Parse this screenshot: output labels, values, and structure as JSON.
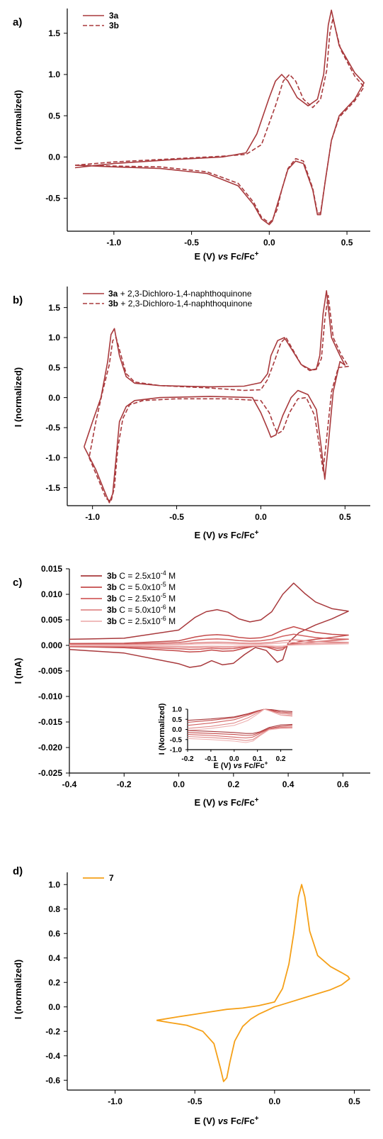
{
  "chart_data": [
    {
      "panel": "a)",
      "type": "line",
      "xlabel": "E (V) vs Fc/Fc+",
      "ylabel": "I (normalized)",
      "xlim": [
        -1.3,
        0.65
      ],
      "ylim": [
        -0.9,
        1.8
      ],
      "xticks": [
        "-1.0",
        "-0.5",
        "0.0",
        "0.5"
      ],
      "xtick_values": [
        -1.0,
        -0.5,
        0.0,
        0.5
      ],
      "yticks": [
        "-0.5",
        "0.0",
        "0.5",
        "1.0",
        "1.5"
      ],
      "ytick_values": [
        -0.5,
        0.0,
        0.5,
        1.0,
        1.5
      ],
      "legend": "top-left",
      "series": [
        {
          "name": "3a",
          "style": "solid",
          "color": "#a8393c",
          "x": [
            -1.25,
            -1.0,
            -0.6,
            -0.3,
            -0.15,
            -0.08,
            0.0,
            0.04,
            0.08,
            0.12,
            0.18,
            0.25,
            0.31,
            0.35,
            0.38,
            0.4,
            0.45,
            0.55,
            0.61,
            0.55,
            0.45,
            0.4,
            0.36,
            0.33,
            0.31,
            0.28,
            0.22,
            0.17,
            0.12,
            0.08,
            0.04,
            0.02,
            0.0,
            -0.05,
            -0.1,
            -0.2,
            -0.4,
            -0.7,
            -1.0,
            -1.25
          ],
          "y": [
            -0.13,
            -0.08,
            -0.03,
            0.0,
            0.05,
            0.28,
            0.72,
            0.92,
            1.0,
            0.92,
            0.72,
            0.62,
            0.7,
            1.0,
            1.6,
            1.78,
            1.35,
            1.02,
            0.9,
            0.7,
            0.5,
            0.2,
            -0.3,
            -0.7,
            -0.7,
            -0.4,
            -0.08,
            -0.05,
            -0.15,
            -0.4,
            -0.65,
            -0.78,
            -0.82,
            -0.75,
            -0.58,
            -0.35,
            -0.2,
            -0.14,
            -0.12,
            -0.1
          ]
        },
        {
          "name": "3b",
          "style": "dashed",
          "color": "#a8393c",
          "x": [
            -1.25,
            -1.0,
            -0.6,
            -0.3,
            -0.15,
            -0.05,
            0.04,
            0.09,
            0.13,
            0.17,
            0.22,
            0.28,
            0.33,
            0.37,
            0.39,
            0.41,
            0.46,
            0.55,
            0.61,
            0.55,
            0.45,
            0.4,
            0.36,
            0.33,
            0.31,
            0.28,
            0.22,
            0.17,
            0.12,
            0.08,
            0.05,
            0.02,
            0.0,
            -0.05,
            -0.1,
            -0.2,
            -0.4,
            -0.7,
            -1.0,
            -1.25
          ],
          "y": [
            -0.1,
            -0.06,
            -0.02,
            0.01,
            0.03,
            0.15,
            0.62,
            0.92,
            1.0,
            0.92,
            0.7,
            0.6,
            0.7,
            1.05,
            1.5,
            1.68,
            1.3,
            0.98,
            0.85,
            0.68,
            0.48,
            0.2,
            -0.3,
            -0.68,
            -0.68,
            -0.38,
            -0.05,
            -0.02,
            -0.14,
            -0.4,
            -0.64,
            -0.76,
            -0.8,
            -0.73,
            -0.55,
            -0.32,
            -0.18,
            -0.12,
            -0.11,
            -0.1
          ]
        }
      ]
    },
    {
      "panel": "b)",
      "type": "line",
      "xlabel": "E (V) vs Fc/Fc+",
      "ylabel": "I (normalized)",
      "xlim": [
        -1.15,
        0.65
      ],
      "ylim": [
        -1.8,
        1.85
      ],
      "xticks": [
        "-1.0",
        "-0.5",
        "0.0",
        "0.5"
      ],
      "xtick_values": [
        -1.0,
        -0.5,
        0.0,
        0.5
      ],
      "yticks": [
        "-1.5",
        "-1.0",
        "-0.5",
        "0.0",
        "0.5",
        "1.0",
        "1.5"
      ],
      "ytick_values": [
        -1.5,
        -1.0,
        -0.5,
        0.0,
        0.5,
        1.0,
        1.5
      ],
      "legend": "top-left",
      "series": [
        {
          "name": "3a + 2,3-Dichloro-1,4-naphthoquinone",
          "style": "solid",
          "color": "#a8393c",
          "x": [
            -1.05,
            -0.98,
            -0.93,
            -0.9,
            -0.88,
            -0.86,
            -0.84,
            -0.8,
            -0.75,
            -0.6,
            -0.3,
            -0.05,
            0.0,
            0.04,
            0.06,
            0.09,
            0.13,
            0.18,
            0.22,
            0.28,
            0.33,
            0.36,
            0.38,
            0.4,
            0.43,
            0.47,
            0.5,
            0.47,
            0.42,
            0.39,
            0.37,
            0.35,
            0.33,
            0.3,
            0.24,
            0.18,
            0.14,
            0.1,
            0.06,
            0.04,
            0.0,
            -0.1,
            -0.3,
            -0.6,
            -0.75,
            -0.8,
            -0.84,
            -0.87,
            -0.89,
            -0.91,
            -0.95,
            -1.0,
            -1.05
          ],
          "y": [
            -0.82,
            -1.2,
            -1.55,
            -1.75,
            -1.6,
            -1.0,
            -0.4,
            -0.15,
            -0.05,
            0.0,
            0.02,
            0.0,
            -0.25,
            -0.52,
            -0.66,
            -0.62,
            -0.3,
            0.0,
            0.12,
            0.05,
            -0.2,
            -0.85,
            -1.36,
            -0.8,
            0.1,
            0.6,
            0.54,
            0.7,
            1.0,
            1.78,
            1.4,
            0.7,
            0.48,
            0.46,
            0.55,
            0.82,
            1.0,
            0.95,
            0.7,
            0.4,
            0.25,
            0.19,
            0.18,
            0.2,
            0.24,
            0.35,
            0.7,
            1.15,
            1.05,
            0.6,
            0.0,
            -0.4,
            -0.82
          ]
        },
        {
          "name": "3b + 2,3-Dichloro-1,4-naphthoquinone",
          "style": "dashed",
          "color": "#a8393c",
          "x": [
            -1.02,
            -0.96,
            -0.92,
            -0.89,
            -0.87,
            -0.85,
            -0.82,
            -0.78,
            -0.7,
            -0.5,
            -0.2,
            0.0,
            0.05,
            0.08,
            0.1,
            0.13,
            0.17,
            0.22,
            0.27,
            0.32,
            0.35,
            0.37,
            0.39,
            0.42,
            0.46,
            0.52,
            0.48,
            0.43,
            0.4,
            0.38,
            0.36,
            0.33,
            0.29,
            0.24,
            0.18,
            0.15,
            0.12,
            0.08,
            0.04,
            0.0,
            -0.1,
            -0.3,
            -0.6,
            -0.75,
            -0.8,
            -0.83,
            -0.86,
            -0.88,
            -0.9,
            -0.94,
            -0.98,
            -1.02
          ],
          "y": [
            -1.0,
            -1.4,
            -1.68,
            -1.73,
            -1.5,
            -0.85,
            -0.35,
            -0.12,
            -0.05,
            -0.02,
            -0.02,
            -0.05,
            -0.25,
            -0.48,
            -0.6,
            -0.55,
            -0.25,
            -0.02,
            0.0,
            -0.3,
            -0.85,
            -1.22,
            -0.7,
            0.1,
            0.5,
            0.52,
            0.7,
            1.0,
            1.7,
            1.3,
            0.65,
            0.47,
            0.45,
            0.55,
            0.85,
            1.0,
            0.92,
            0.6,
            0.3,
            0.13,
            0.12,
            0.16,
            0.2,
            0.26,
            0.4,
            0.7,
            1.0,
            0.95,
            0.55,
            0.1,
            -0.4,
            -1.0
          ]
        }
      ]
    },
    {
      "panel": "c)",
      "type": "line",
      "xlabel": "E (V) vs Fc/Fc+",
      "ylabel": "I (mA)",
      "xlim": [
        -0.4,
        0.7
      ],
      "ylim": [
        -0.025,
        0.015
      ],
      "xticks": [
        "-0.4",
        "-0.2",
        "0.0",
        "0.2",
        "0.4",
        "0.6"
      ],
      "xtick_values": [
        -0.4,
        -0.2,
        0.0,
        0.2,
        0.4,
        0.6
      ],
      "yticks": [
        "-0.025",
        "-0.020",
        "-0.015",
        "-0.010",
        "-0.005",
        "0.000",
        "0.005",
        "0.010",
        "0.015"
      ],
      "ytick_values": [
        -0.025,
        -0.02,
        -0.015,
        -0.01,
        -0.005,
        0.0,
        0.005,
        0.01,
        0.015
      ],
      "legend": "top-left",
      "series": [
        {
          "name": "3b",
          "label_suffix": " C = 2.5x10",
          "exponent": "-4",
          "unit": " M",
          "color": "#a8393c",
          "scale": 1.0
        },
        {
          "name": "3b",
          "label_suffix": " C = 5.0x10",
          "exponent": "-5",
          "unit": " M",
          "color": "#c44b4b",
          "scale": 0.3
        },
        {
          "name": "3b",
          "label_suffix": " C = 2.5x10",
          "exponent": "-5",
          "unit": " M",
          "color": "#d26060",
          "scale": 0.18
        },
        {
          "name": "3b",
          "label_suffix": " C = 5.0x10",
          "exponent": "-6",
          "unit": " M",
          "color": "#e08a8a",
          "scale": 0.09
        },
        {
          "name": "3b",
          "label_suffix": " C = 2.5x10",
          "exponent": "-6",
          "unit": " M",
          "color": "#eeb3b3",
          "scale": 0.05
        }
      ],
      "base_curve": {
        "x": [
          -0.4,
          -0.2,
          0.0,
          0.06,
          0.1,
          0.14,
          0.18,
          0.22,
          0.26,
          0.3,
          0.34,
          0.38,
          0.42,
          0.46,
          0.5,
          0.56,
          0.62,
          0.56,
          0.5,
          0.44,
          0.4,
          0.38,
          0.36,
          0.32,
          0.28,
          0.24,
          0.2,
          0.16,
          0.12,
          0.08,
          0.04,
          0.0,
          -0.2,
          -0.4
        ],
        "y": [
          0.0012,
          0.0014,
          0.003,
          0.0055,
          0.0066,
          0.007,
          0.0065,
          0.0052,
          0.0046,
          0.005,
          0.0066,
          0.01,
          0.0122,
          0.0102,
          0.0085,
          0.0072,
          0.0067,
          0.0052,
          0.004,
          0.0025,
          0.0005,
          -0.0028,
          -0.0033,
          -0.001,
          -0.0004,
          -0.0018,
          -0.0035,
          -0.0038,
          -0.003,
          -0.004,
          -0.0043,
          -0.0036,
          -0.0015,
          -0.0008
        ]
      },
      "inset": {
        "type": "line",
        "xlabel": "E (V) vs Fc/Fc+",
        "ylabel": "I (Normalized)",
        "xlim": [
          -0.2,
          0.25
        ],
        "ylim": [
          -1.0,
          1.0
        ],
        "xticks": [
          "-0.2",
          "-0.1",
          "0.0",
          "0.1",
          "0.2"
        ],
        "xtick_values": [
          -0.2,
          -0.1,
          0.0,
          0.1,
          0.2
        ],
        "yticks": [
          "-1.0",
          "-0.5",
          "0.0",
          "0.5",
          "1.0"
        ],
        "ytick_values": [
          -1.0,
          -0.5,
          0.0,
          0.5,
          1.0
        ],
        "upper_x": [
          -0.2,
          -0.1,
          0.0,
          0.06,
          0.1,
          0.13,
          0.16,
          0.2,
          0.25
        ],
        "lower_x": [
          -0.2,
          -0.1,
          0.0,
          0.05,
          0.08,
          0.11,
          0.15,
          0.2,
          0.25
        ],
        "upper_y": [
          [
            0.45,
            0.52,
            0.62,
            0.78,
            0.92,
            1.0,
            0.98,
            0.92,
            0.88
          ],
          [
            0.35,
            0.45,
            0.58,
            0.75,
            0.9,
            1.0,
            0.95,
            0.86,
            0.82
          ],
          [
            0.2,
            0.32,
            0.48,
            0.7,
            0.88,
            1.0,
            0.92,
            0.8,
            0.75
          ],
          [
            0.05,
            0.15,
            0.32,
            0.58,
            0.82,
            1.0,
            0.9,
            0.72,
            0.68
          ],
          [
            -0.05,
            0.05,
            0.2,
            0.45,
            0.75,
            1.0,
            0.88,
            0.7,
            0.65
          ]
        ],
        "lower_y": [
          [
            -0.05,
            -0.1,
            -0.15,
            -0.2,
            -0.2,
            -0.12,
            0.1,
            0.22,
            0.25
          ],
          [
            -0.15,
            -0.2,
            -0.25,
            -0.3,
            -0.28,
            -0.15,
            0.05,
            0.15,
            0.2
          ],
          [
            -0.25,
            -0.3,
            -0.38,
            -0.42,
            -0.38,
            -0.2,
            0.02,
            0.1,
            0.12
          ],
          [
            -0.35,
            -0.4,
            -0.48,
            -0.55,
            -0.5,
            -0.28,
            0.0,
            0.08,
            0.1
          ],
          [
            -0.45,
            -0.5,
            -0.58,
            -0.65,
            -0.58,
            -0.32,
            -0.02,
            0.05,
            0.06
          ]
        ]
      }
    },
    {
      "panel": "d)",
      "type": "line",
      "xlabel": "E (V) vs Fc/Fc+",
      "ylabel": "I (normalized)",
      "xlim": [
        -1.3,
        0.6
      ],
      "ylim": [
        -0.68,
        1.1
      ],
      "xticks": [
        "-1.0",
        "-0.5",
        "0.0",
        "0.5"
      ],
      "xtick_values": [
        -1.0,
        -0.5,
        0.0,
        0.5
      ],
      "yticks": [
        "-0.6",
        "-0.4",
        "-0.2",
        "0.0",
        "0.2",
        "0.4",
        "0.6",
        "0.8",
        "1.0"
      ],
      "ytick_values": [
        -0.6,
        -0.4,
        -0.2,
        0.0,
        0.2,
        0.4,
        0.6,
        0.8,
        1.0
      ],
      "legend": "top-left",
      "series": [
        {
          "name": "7",
          "style": "solid",
          "color": "#f5a018",
          "x": [
            -0.74,
            -0.6,
            -0.5,
            -0.4,
            -0.3,
            -0.2,
            -0.1,
            0.0,
            0.05,
            0.09,
            0.12,
            0.15,
            0.17,
            0.19,
            0.22,
            0.27,
            0.35,
            0.42,
            0.46,
            0.47,
            0.42,
            0.35,
            0.2,
            0.1,
            0.0,
            -0.05,
            -0.1,
            -0.15,
            -0.2,
            -0.25,
            -0.28,
            -0.3,
            -0.32,
            -0.34,
            -0.38,
            -0.45,
            -0.55,
            -0.65,
            -0.74
          ],
          "y": [
            -0.11,
            -0.08,
            -0.06,
            -0.04,
            -0.02,
            -0.01,
            0.01,
            0.04,
            0.15,
            0.35,
            0.6,
            0.9,
            1.0,
            0.9,
            0.62,
            0.42,
            0.33,
            0.28,
            0.25,
            0.23,
            0.18,
            0.14,
            0.08,
            0.04,
            0.0,
            -0.03,
            -0.06,
            -0.1,
            -0.16,
            -0.28,
            -0.45,
            -0.58,
            -0.61,
            -0.5,
            -0.3,
            -0.2,
            -0.15,
            -0.13,
            -0.11
          ]
        }
      ]
    }
  ]
}
